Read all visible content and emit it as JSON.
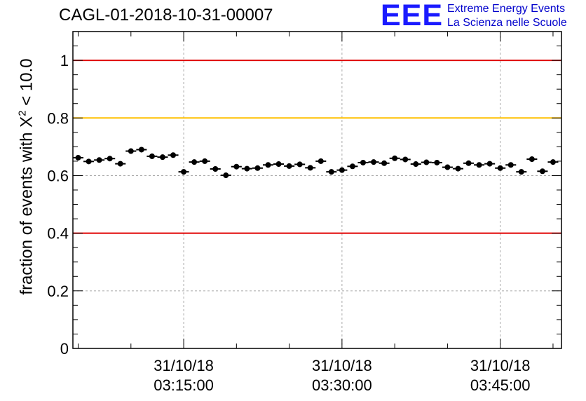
{
  "title": "CAGL-01-2018-10-31-00007",
  "logo": {
    "mark": "EEE",
    "line1": "Extreme Energy Events",
    "line2": "La Scienza nelle Scuole"
  },
  "chart_data": {
    "type": "scatter",
    "ylabel_main": "fraction of events with X",
    "ylabel_sup": "2",
    "ylabel_tail": " < 10.0",
    "ylim": [
      0,
      1.1
    ],
    "yticks": [
      0,
      0.2,
      0.4,
      0.6,
      0.8,
      1
    ],
    "ytick_labels": [
      "0",
      "0.2",
      "0.4",
      "0.6",
      "0.8",
      "1"
    ],
    "xlim_minutes": [
      3.5,
      49.8
    ],
    "xticks": [
      {
        "minute": 14.0,
        "date": "31/10/18",
        "time": "03:15:00"
      },
      {
        "minute": 29.0,
        "date": "31/10/18",
        "time": "03:30:00"
      },
      {
        "minute": 44.0,
        "date": "31/10/18",
        "time": "03:45:00"
      }
    ],
    "x_axis_unit": "minutes after 03:00:00",
    "grid": true,
    "reference_lines": [
      {
        "y": 1.0,
        "color": "#e00000"
      },
      {
        "y": 0.8,
        "color": "#ffc000"
      },
      {
        "y": 0.4,
        "color": "#e00000"
      }
    ],
    "marker_color": "#000000",
    "x": [
      4.0,
      5.0,
      6.0,
      7.0,
      8.0,
      9.0,
      10.0,
      11.0,
      12.0,
      13.0,
      14.0,
      15.0,
      16.0,
      17.0,
      18.0,
      19.0,
      20.0,
      21.0,
      22.0,
      23.0,
      24.0,
      25.0,
      26.0,
      27.0,
      28.0,
      29.0,
      30.0,
      31.0,
      32.0,
      33.0,
      34.0,
      35.0,
      36.0,
      37.0,
      38.0,
      39.0,
      40.0,
      41.0,
      42.0,
      43.0,
      44.0,
      45.0,
      46.0,
      47.0,
      48.0,
      49.0
    ],
    "y": [
      0.662,
      0.649,
      0.654,
      0.659,
      0.641,
      0.685,
      0.69,
      0.667,
      0.664,
      0.671,
      0.613,
      0.647,
      0.65,
      0.623,
      0.601,
      0.631,
      0.624,
      0.626,
      0.637,
      0.64,
      0.633,
      0.639,
      0.627,
      0.65,
      0.613,
      0.619,
      0.632,
      0.645,
      0.647,
      0.643,
      0.66,
      0.656,
      0.64,
      0.646,
      0.645,
      0.629,
      0.624,
      0.643,
      0.637,
      0.641,
      0.626,
      0.637,
      0.613,
      0.657,
      0.615,
      0.647
    ],
    "yerr": 0.009,
    "xerr": 0.5
  }
}
